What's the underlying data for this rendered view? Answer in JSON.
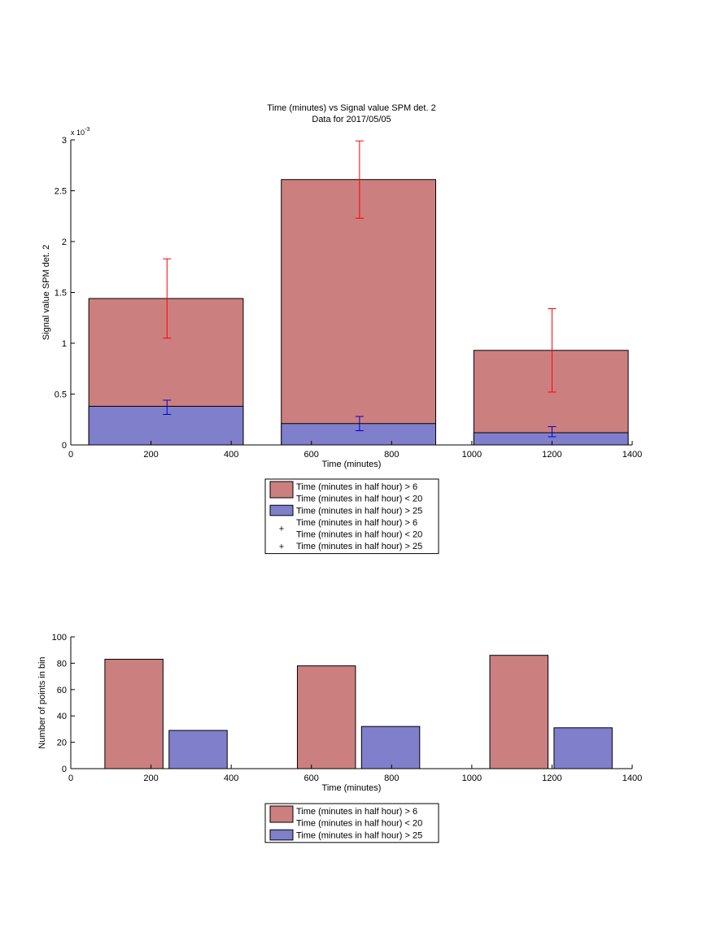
{
  "colors": {
    "red_fill": "#cc7f7f",
    "blue_fill": "#7f7fcc",
    "red_err": "#ff0000",
    "blue_err": "#0000cc",
    "axis": "#000000"
  },
  "chart_data": [
    {
      "type": "bar",
      "title": "Time (minutes) vs Signal value SPM det. 2",
      "subtitle": "Data for 2017/05/05",
      "xlabel": "Time (minutes)",
      "ylabel": "Signal value SPM det. 2",
      "y_exponent_label": "x 10",
      "y_exponent_power": "-3",
      "xlim": [
        0,
        1400
      ],
      "ylim": [
        0,
        3
      ],
      "x_ticks": [
        0,
        200,
        400,
        600,
        800,
        1000,
        1200,
        1400
      ],
      "x_tick_labels": [
        "0",
        "200",
        "400",
        "600",
        "800",
        "1000",
        "1200",
        "1400"
      ],
      "y_ticks": [
        0,
        0.5,
        1,
        1.5,
        2,
        2.5,
        3
      ],
      "y_tick_labels": [
        "0",
        "0.5",
        "1",
        "1.5",
        "2",
        "2.5",
        "3"
      ],
      "bins": [
        {
          "x0": 45,
          "x1": 430,
          "center": 240
        },
        {
          "x0": 525,
          "x1": 910,
          "center": 720
        },
        {
          "x0": 1005,
          "x1": 1390,
          "center": 1200
        }
      ],
      "series": [
        {
          "name": "Time (minutes in half hour) > 6\nTime (minutes in half hour) < 20",
          "color_key": "red_fill",
          "values": [
            1.44,
            2.61,
            0.93
          ],
          "err_center": [
            1.44,
            2.61,
            0.93
          ],
          "err_low": [
            1.05,
            2.23,
            0.52
          ],
          "err_high": [
            1.83,
            2.99,
            1.34
          ]
        },
        {
          "name": "Time (minutes in half hour) > 25",
          "color_key": "blue_fill",
          "values": [
            0.38,
            0.21,
            0.12
          ],
          "err_center": [
            0.37,
            0.21,
            0.13
          ],
          "err_low": [
            0.3,
            0.14,
            0.08
          ],
          "err_high": [
            0.44,
            0.28,
            0.18
          ]
        }
      ],
      "legend": {
        "placement": "below",
        "entries": [
          {
            "kind": "patch",
            "color_key": "red_fill",
            "lines": [
              "Time (minutes in half hour) > 6",
              "Time (minutes in half hour) < 20"
            ]
          },
          {
            "kind": "patch",
            "color_key": "blue_fill",
            "lines": [
              "Time (minutes in half hour) > 25"
            ]
          },
          {
            "kind": "marker",
            "color_key": "red_err",
            "lines": [
              "Time (minutes in half hour) > 6",
              "Time (minutes in half hour) < 20"
            ]
          },
          {
            "kind": "marker",
            "color_key": "blue_err",
            "lines": [
              "Time (minutes in half hour) > 25"
            ]
          }
        ]
      }
    },
    {
      "type": "bar",
      "title": "",
      "xlabel": "Time (minutes)",
      "ylabel": "Number of points in bin",
      "xlim": [
        0,
        1400
      ],
      "ylim": [
        0,
        100
      ],
      "x_ticks": [
        0,
        200,
        400,
        600,
        800,
        1000,
        1200,
        1400
      ],
      "x_tick_labels": [
        "0",
        "200",
        "400",
        "600",
        "800",
        "1000",
        "1200",
        "1400"
      ],
      "y_ticks": [
        0,
        20,
        40,
        60,
        80,
        100
      ],
      "y_tick_labels": [
        "0",
        "20",
        "40",
        "60",
        "80",
        "100"
      ],
      "series": [
        {
          "name": "Time (minutes in half hour) > 6\nTime (minutes in half hour) < 20",
          "color_key": "red_fill",
          "bars": [
            {
              "x0": 85,
              "x1": 230,
              "value": 83
            },
            {
              "x0": 565,
              "x1": 710,
              "value": 78
            },
            {
              "x0": 1045,
              "x1": 1190,
              "value": 86
            }
          ]
        },
        {
          "name": "Time (minutes in half hour) > 25",
          "color_key": "blue_fill",
          "bars": [
            {
              "x0": 245,
              "x1": 390,
              "value": 29
            },
            {
              "x0": 725,
              "x1": 870,
              "value": 32
            },
            {
              "x0": 1205,
              "x1": 1350,
              "value": 31
            }
          ]
        }
      ],
      "legend": {
        "placement": "below",
        "entries": [
          {
            "kind": "patch",
            "color_key": "red_fill",
            "lines": [
              "Time (minutes in half hour) > 6",
              "Time (minutes in half hour) < 20"
            ]
          },
          {
            "kind": "patch",
            "color_key": "blue_fill",
            "lines": [
              "Time (minutes in half hour) > 25"
            ]
          }
        ]
      }
    }
  ]
}
